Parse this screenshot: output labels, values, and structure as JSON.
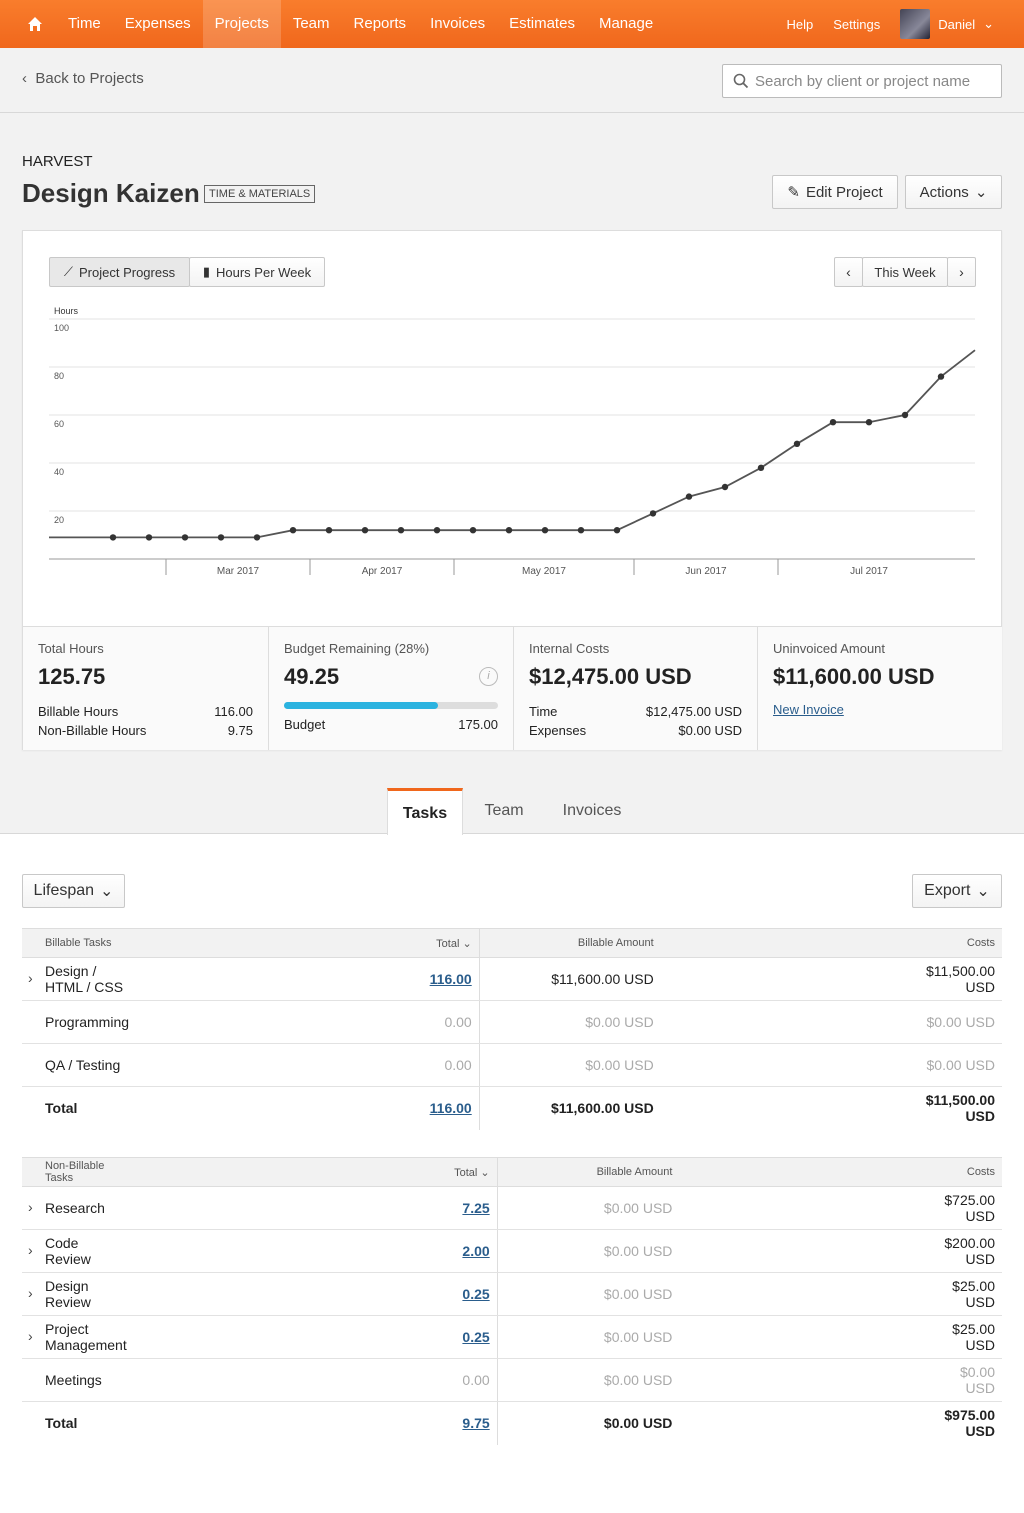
{
  "nav": {
    "items": [
      "Time",
      "Expenses",
      "Projects",
      "Team",
      "Reports",
      "Invoices",
      "Estimates",
      "Manage"
    ],
    "active": 2,
    "right": [
      "Help",
      "Settings",
      "Daniel"
    ]
  },
  "subheader": {
    "back": "Back to Projects",
    "search_placeholder": "Search by client or project name"
  },
  "header": {
    "client": "HARVEST",
    "title": "Design Kaizen",
    "badge": "TIME & MATERIALS",
    "edit": "Edit Project",
    "actions": "Actions"
  },
  "chart_tabs": [
    "Project Progress",
    "Hours Per Week"
  ],
  "week_nav": "This Week",
  "chart_data": {
    "type": "line",
    "y_label": "Hours",
    "color": "#555555",
    "categories": [
      null,
      null,
      null,
      null,
      null,
      null,
      null,
      null,
      null,
      null,
      null,
      null,
      null,
      null,
      null,
      null,
      null,
      null,
      null,
      null,
      null,
      null,
      null,
      null,
      null,
      null
    ],
    "values": [
      9,
      9,
      9,
      9,
      9,
      9,
      12,
      12,
      12,
      12,
      12,
      12,
      12,
      12,
      12,
      12,
      19,
      26,
      30,
      38,
      48,
      57,
      57,
      60,
      76,
      87
    ],
    "x_labels": [
      "Mar 2017",
      "Apr 2017",
      "May 2017",
      "Jun 2017",
      "Jul 2017"
    ],
    "ylim": [
      0,
      100
    ],
    "yticks": [
      20,
      40,
      60,
      80,
      100
    ],
    "grid": true
  },
  "stats": [
    {
      "label": "Total Hours",
      "value": "125.75",
      "rows": [
        [
          "Billable Hours",
          "116.00"
        ],
        [
          "Non-Billable Hours",
          "9.75"
        ]
      ]
    },
    {
      "label": "Budget Remaining (28%)",
      "value": "49.25",
      "rows": [
        [
          "Budget",
          "175.00"
        ]
      ]
    },
    {
      "label": "Internal Costs",
      "value": "$12,475.00 USD",
      "rows": [
        [
          "Time",
          "$12,475.00 USD"
        ],
        [
          "Expenses",
          "$0.00 USD"
        ]
      ]
    },
    {
      "label": "Uninvoiced Amount",
      "value": "$11,600.00 USD",
      "link": "New Invoice"
    }
  ],
  "tabs": [
    "Tasks",
    "Team",
    "Invoices"
  ],
  "filter": "Lifespan",
  "export": "Export",
  "tables": [
    {
      "headers": [
        "Billable Tasks",
        "Total",
        "Billable Amount",
        "Costs"
      ],
      "rows": [
        {
          "name": "Design / HTML / CSS",
          "total": "116.00",
          "amount": "$11,600.00 USD",
          "costs": "$11,500.00 USD",
          "expandable": true
        },
        {
          "name": "Programming",
          "total": "0.00",
          "amount": "$0.00 USD",
          "costs": "$0.00 USD",
          "expandable": false
        },
        {
          "name": "QA / Testing",
          "total": "0.00",
          "amount": "$0.00 USD",
          "costs": "$0.00 USD",
          "expandable": false
        }
      ],
      "total": {
        "name": "Total",
        "total": "116.00",
        "amount": "$11,600.00 USD",
        "costs": "$11,500.00 USD"
      }
    },
    {
      "headers": [
        "Non-Billable Tasks",
        "Total",
        "Billable Amount",
        "Costs"
      ],
      "rows": [
        {
          "name": "Research",
          "total": "7.25",
          "amount": "$0.00 USD",
          "costs": "$725.00 USD",
          "expandable": true
        },
        {
          "name": "Code Review",
          "total": "2.00",
          "amount": "$0.00 USD",
          "costs": "$200.00 USD",
          "expandable": true
        },
        {
          "name": "Design Review",
          "total": "0.25",
          "amount": "$0.00 USD",
          "costs": "$25.00 USD",
          "expandable": true
        },
        {
          "name": "Project Management",
          "total": "0.25",
          "amount": "$0.00 USD",
          "costs": "$25.00 USD",
          "expandable": true
        },
        {
          "name": "Meetings",
          "total": "0.00",
          "amount": "$0.00 USD",
          "costs": "$0.00 USD",
          "expandable": false
        }
      ],
      "total": {
        "name": "Total",
        "total": "9.75",
        "amount": "$0.00 USD",
        "costs": "$975.00 USD"
      }
    }
  ]
}
